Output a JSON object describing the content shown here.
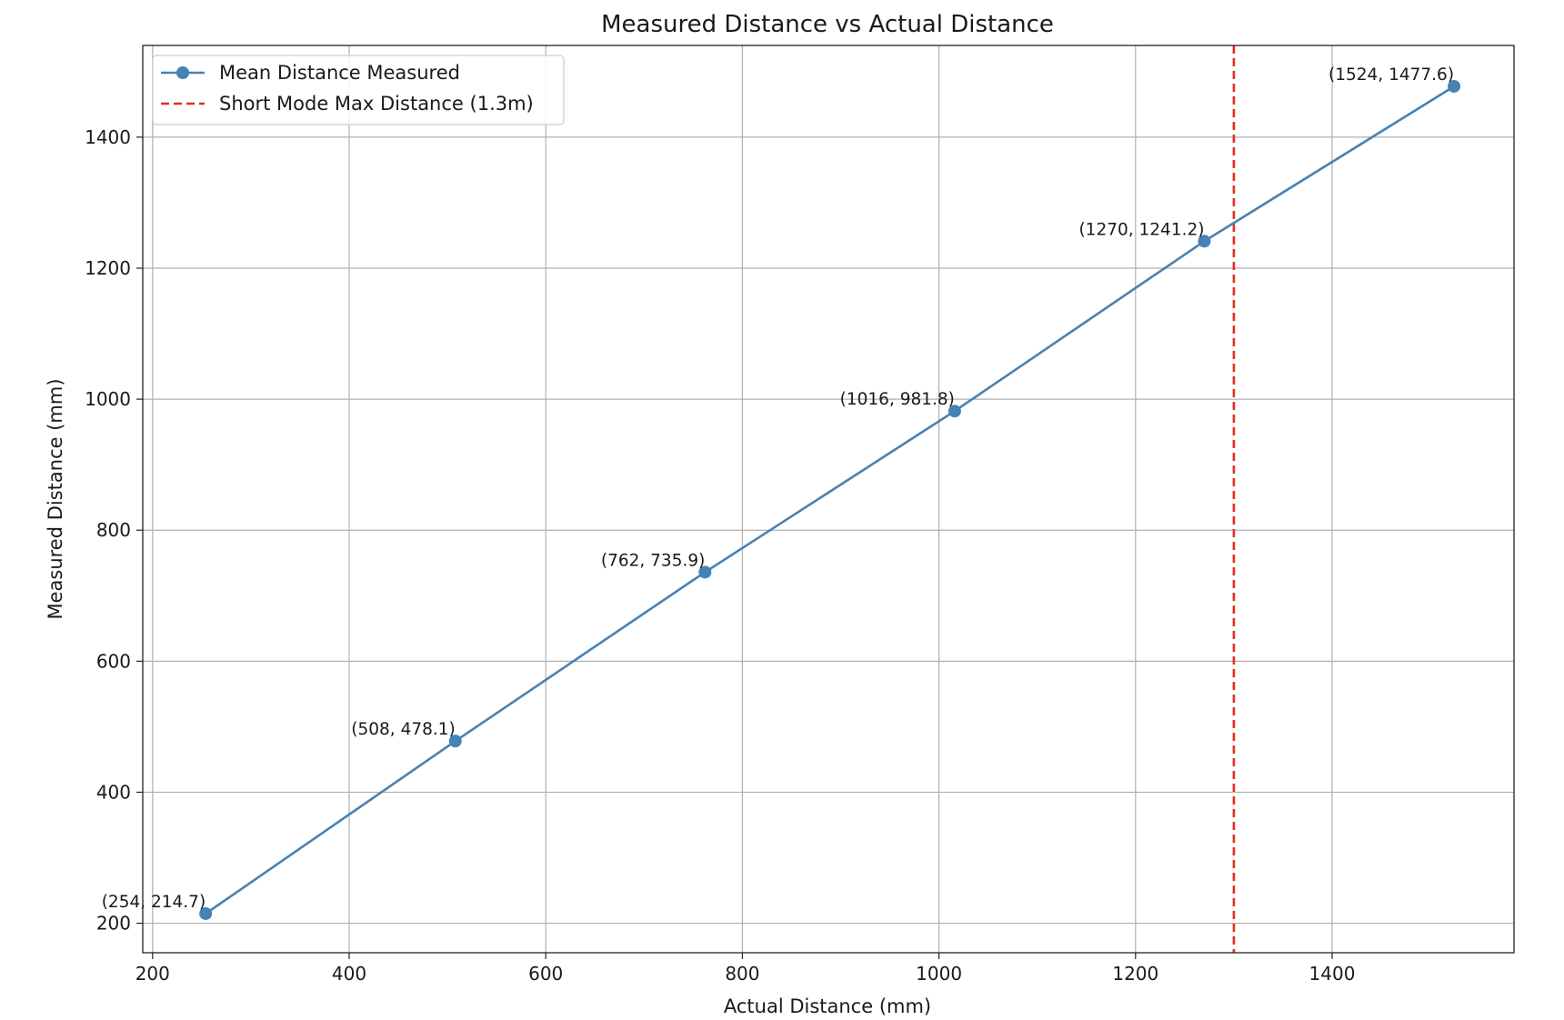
{
  "chart_data": {
    "type": "line",
    "title": "Measured Distance vs Actual Distance",
    "xlabel": "Actual Distance (mm)",
    "ylabel": "Measured Distance (mm)",
    "xlim": [
      190,
      1585
    ],
    "ylim": [
      155,
      1540
    ],
    "x_ticks": [
      200,
      400,
      600,
      800,
      1000,
      1200,
      1400
    ],
    "y_ticks": [
      200,
      400,
      600,
      800,
      1000,
      1200,
      1400
    ],
    "x_tick_labels": [
      "200",
      "400",
      "600",
      "800",
      "1000",
      "1200",
      "1400"
    ],
    "y_tick_labels": [
      "200",
      "400",
      "600",
      "800",
      "1000",
      "1200",
      "1400"
    ],
    "grid": true,
    "legend_position": "top-left",
    "series": [
      {
        "name": "Mean Distance Measured",
        "style": "solid line with circle markers",
        "color": "#4682b4",
        "x": [
          254,
          508,
          762,
          1016,
          1270,
          1524
        ],
        "y": [
          214.7,
          478.1,
          735.9,
          981.8,
          1241.2,
          1477.6
        ],
        "labels": [
          "(254, 214.7)",
          "(508, 478.1)",
          "(762, 735.9)",
          "(1016, 981.8)",
          "(1270, 1241.2)",
          "(1524, 1477.6)"
        ]
      }
    ],
    "reference_line": {
      "name": "Short Mode Max Distance (1.3m)",
      "orientation": "vertical",
      "x": 1300,
      "style": "dashed",
      "color": "#e0301e"
    }
  }
}
